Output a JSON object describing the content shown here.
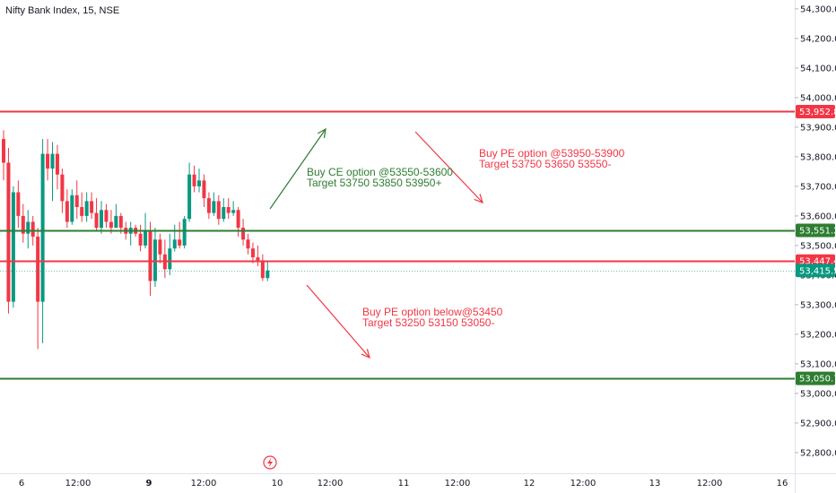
{
  "header": {
    "title": "Nifty Bank Index, 15, NSE"
  },
  "colors": {
    "up": "#089981",
    "down": "#f23645",
    "resistance": "#f23645",
    "support": "#2e7d32",
    "axis_text": "#131722",
    "last_price": "#089981"
  },
  "chart_data": {
    "type": "candlestick",
    "price_axis": {
      "ylim": [
        52730,
        54330
      ],
      "ticks": [
        52800,
        52900,
        53000,
        53100,
        53200,
        53300,
        53400,
        53500,
        53600,
        53700,
        53800,
        53900,
        54000,
        54100,
        54200,
        54300
      ],
      "tick_labels": [
        "52,800.00",
        "52,900.00",
        "53,000.00",
        "53,100.00",
        "53,200.00",
        "53,300.00",
        "53,400.00",
        "53,500.00",
        "53,600.00",
        "53,700.00",
        "53,800.00",
        "53,900.00",
        "54,000.00",
        "54,100.00",
        "54,200.00",
        "54,300.00"
      ]
    },
    "time_axis": {
      "labels": [
        {
          "text": "6",
          "bold": false
        },
        {
          "text": "12:00",
          "bold": false
        },
        {
          "text": "9",
          "bold": true
        },
        {
          "text": "12:00",
          "bold": false
        },
        {
          "text": "10",
          "bold": false
        },
        {
          "text": "12:00",
          "bold": false
        },
        {
          "text": "11",
          "bold": false
        },
        {
          "text": "12:00",
          "bold": false
        },
        {
          "text": "12",
          "bold": false
        },
        {
          "text": "12:00",
          "bold": false
        },
        {
          "text": "13",
          "bold": false
        },
        {
          "text": "12:00",
          "bold": false
        },
        {
          "text": "16",
          "bold": false
        }
      ]
    },
    "candles": [
      {
        "o": 53860,
        "h": 53890,
        "l": 53720,
        "c": 53780
      },
      {
        "o": 53780,
        "h": 53830,
        "l": 53270,
        "c": 53310
      },
      {
        "o": 53310,
        "h": 53700,
        "l": 53290,
        "c": 53680
      },
      {
        "o": 53680,
        "h": 53720,
        "l": 53560,
        "c": 53600
      },
      {
        "o": 53600,
        "h": 53640,
        "l": 53510,
        "c": 53540
      },
      {
        "o": 53540,
        "h": 53620,
        "l": 53490,
        "c": 53580
      },
      {
        "o": 53580,
        "h": 53600,
        "l": 53500,
        "c": 53530
      },
      {
        "o": 53530,
        "h": 53560,
        "l": 53150,
        "c": 53310
      },
      {
        "o": 53310,
        "h": 53860,
        "l": 53170,
        "c": 53810
      },
      {
        "o": 53810,
        "h": 53860,
        "l": 53720,
        "c": 53760
      },
      {
        "o": 53760,
        "h": 53850,
        "l": 53650,
        "c": 53810
      },
      {
        "o": 53810,
        "h": 53840,
        "l": 53690,
        "c": 53740
      },
      {
        "o": 53740,
        "h": 53760,
        "l": 53610,
        "c": 53650
      },
      {
        "o": 53650,
        "h": 53690,
        "l": 53560,
        "c": 53580
      },
      {
        "o": 53580,
        "h": 53690,
        "l": 53570,
        "c": 53670
      },
      {
        "o": 53670,
        "h": 53720,
        "l": 53590,
        "c": 53630
      },
      {
        "o": 53630,
        "h": 53680,
        "l": 53580,
        "c": 53600
      },
      {
        "o": 53600,
        "h": 53680,
        "l": 53580,
        "c": 53650
      },
      {
        "o": 53650,
        "h": 53680,
        "l": 53590,
        "c": 53610
      },
      {
        "o": 53610,
        "h": 53660,
        "l": 53550,
        "c": 53560
      },
      {
        "o": 53560,
        "h": 53650,
        "l": 53540,
        "c": 53620
      },
      {
        "o": 53620,
        "h": 53640,
        "l": 53560,
        "c": 53580
      },
      {
        "o": 53580,
        "h": 53620,
        "l": 53540,
        "c": 53560
      },
      {
        "o": 53560,
        "h": 53640,
        "l": 53560,
        "c": 53600
      },
      {
        "o": 53600,
        "h": 53610,
        "l": 53540,
        "c": 53560
      },
      {
        "o": 53560,
        "h": 53580,
        "l": 53520,
        "c": 53540
      },
      {
        "o": 53540,
        "h": 53580,
        "l": 53500,
        "c": 53560
      },
      {
        "o": 53560,
        "h": 53570,
        "l": 53530,
        "c": 53540
      },
      {
        "o": 53540,
        "h": 53570,
        "l": 53480,
        "c": 53500
      },
      {
        "o": 53500,
        "h": 53610,
        "l": 53490,
        "c": 53550
      },
      {
        "o": 53550,
        "h": 53580,
        "l": 53330,
        "c": 53380
      },
      {
        "o": 53380,
        "h": 53560,
        "l": 53360,
        "c": 53520
      },
      {
        "o": 53520,
        "h": 53540,
        "l": 53440,
        "c": 53470
      },
      {
        "o": 53470,
        "h": 53520,
        "l": 53390,
        "c": 53420
      },
      {
        "o": 53420,
        "h": 53540,
        "l": 53400,
        "c": 53490
      },
      {
        "o": 53490,
        "h": 53570,
        "l": 53480,
        "c": 53520
      },
      {
        "o": 53520,
        "h": 53580,
        "l": 53490,
        "c": 53500
      },
      {
        "o": 53500,
        "h": 53600,
        "l": 53490,
        "c": 53590
      },
      {
        "o": 53590,
        "h": 53780,
        "l": 53580,
        "c": 53740
      },
      {
        "o": 53740,
        "h": 53770,
        "l": 53680,
        "c": 53700
      },
      {
        "o": 53700,
        "h": 53760,
        "l": 53680,
        "c": 53720
      },
      {
        "o": 53720,
        "h": 53740,
        "l": 53630,
        "c": 53660
      },
      {
        "o": 53660,
        "h": 53680,
        "l": 53590,
        "c": 53610
      },
      {
        "o": 53610,
        "h": 53680,
        "l": 53600,
        "c": 53650
      },
      {
        "o": 53650,
        "h": 53670,
        "l": 53570,
        "c": 53590
      },
      {
        "o": 53590,
        "h": 53660,
        "l": 53580,
        "c": 53630
      },
      {
        "o": 53630,
        "h": 53660,
        "l": 53590,
        "c": 53610
      },
      {
        "o": 53610,
        "h": 53650,
        "l": 53600,
        "c": 53620
      },
      {
        "o": 53620,
        "h": 53630,
        "l": 53530,
        "c": 53560
      },
      {
        "o": 53560,
        "h": 53590,
        "l": 53500,
        "c": 53520
      },
      {
        "o": 53520,
        "h": 53540,
        "l": 53470,
        "c": 53490
      },
      {
        "o": 53490,
        "h": 53510,
        "l": 53440,
        "c": 53460
      },
      {
        "o": 53460,
        "h": 53500,
        "l": 53430,
        "c": 53450
      },
      {
        "o": 53450,
        "h": 53470,
        "l": 53380,
        "c": 53390
      },
      {
        "o": 53390,
        "h": 53450,
        "l": 53380,
        "c": 53415.5
      }
    ],
    "horizontal_levels": [
      {
        "price": 53952.85,
        "label": "53,952.85",
        "color": "#f23645"
      },
      {
        "price": 53551.25,
        "label": "53,551.25",
        "color": "#2e7d32"
      },
      {
        "price": 53447.45,
        "label": "53,447.45",
        "color": "#f23645"
      },
      {
        "price": 53050.7,
        "label": "53,050.70",
        "color": "#2e7d32"
      }
    ],
    "last_price": {
      "price": 53415.5,
      "label": "53,415.50"
    },
    "annotations": [
      {
        "lines": [
          "Buy CE option @53550-53600",
          "Target 53750 53850 53950+"
        ],
        "color": "#2e7d32"
      },
      {
        "lines": [
          "Buy PE option @53950-53900",
          "Target 53750 53650 53550-"
        ],
        "color": "#f23645"
      },
      {
        "lines": [
          "Buy PE option below@53450",
          "Target 53250 53150 53050-"
        ],
        "color": "#f23645"
      }
    ]
  }
}
